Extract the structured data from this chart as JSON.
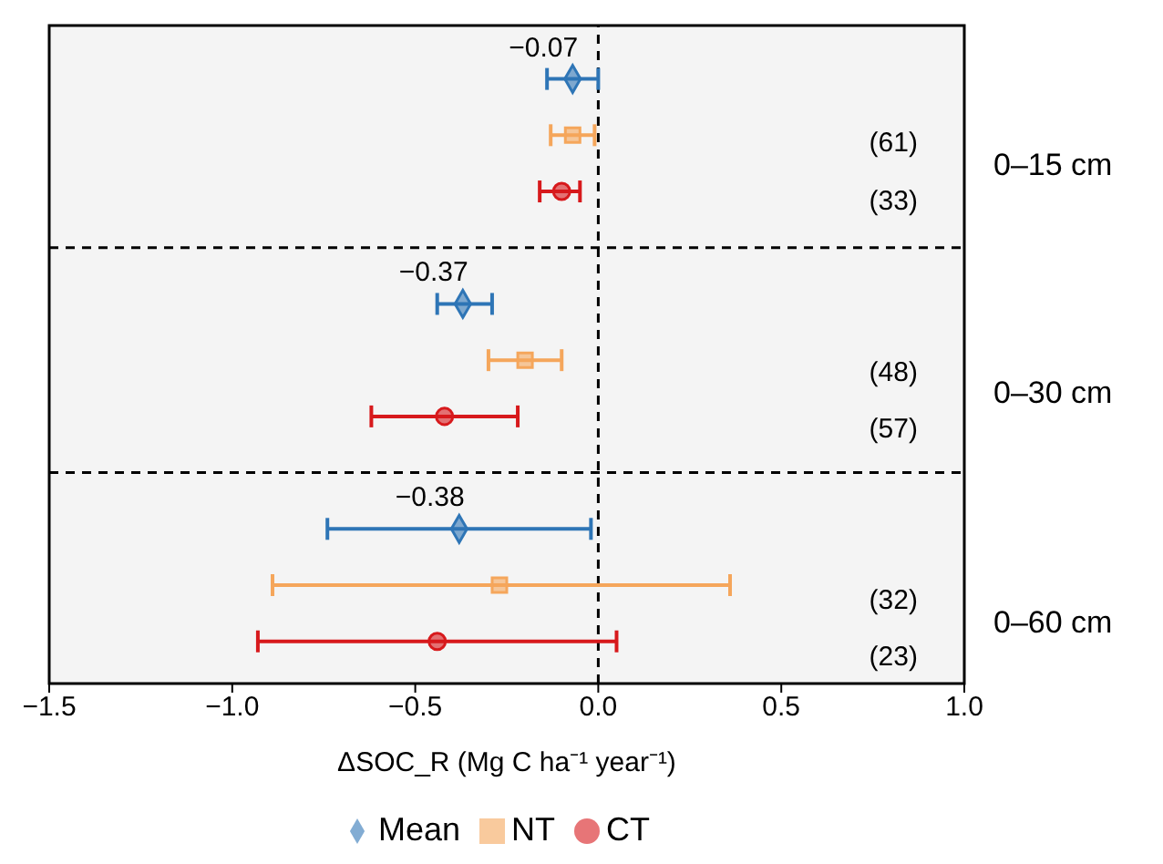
{
  "chart_data": {
    "type": "scatter",
    "orientation": "horizontal",
    "xlabel": "ΔSOC_R (Mg C ha⁻¹ year⁻¹)",
    "categories": [
      null,
      null,
      null,
      null,
      null,
      null,
      null,
      null,
      null
    ],
    "series": [
      {
        "name": "Mean",
        "color": "#2e75b6",
        "marker": "diamond",
        "values": [
          -0.07,
          null,
          null,
          -0.37,
          null,
          null,
          -0.38,
          null,
          null
        ],
        "errors": [
          [
            -0.14,
            0.0
          ],
          null,
          null,
          [
            -0.44,
            -0.29
          ],
          null,
          null,
          [
            -0.74,
            -0.02
          ],
          null,
          null
        ],
        "value_labels": [
          "−0.07",
          null,
          null,
          "−0.37",
          null,
          null,
          "−0.38",
          null,
          null
        ]
      },
      {
        "name": "NT",
        "color": "#f5a65b",
        "marker": "square",
        "values": [
          null,
          -0.07,
          null,
          null,
          -0.2,
          null,
          null,
          -0.27,
          null
        ],
        "errors": [
          null,
          [
            -0.13,
            -0.01
          ],
          null,
          null,
          [
            -0.3,
            -0.1
          ],
          null,
          null,
          [
            -0.89,
            0.36
          ],
          null
        ]
      },
      {
        "name": "CT",
        "color": "#d7191c",
        "marker": "circle",
        "values": [
          null,
          null,
          -0.1,
          null,
          null,
          -0.42,
          null,
          null,
          -0.44
        ],
        "errors": [
          null,
          null,
          [
            -0.16,
            -0.05
          ],
          null,
          null,
          [
            -0.62,
            -0.22
          ],
          null,
          null,
          [
            -0.93,
            0.05
          ]
        ]
      }
    ],
    "xlim": [
      -1.5,
      1.0
    ],
    "xticks": [
      {
        "value": -1.5,
        "label": "−1.5"
      },
      {
        "value": -1.0,
        "label": "−1.0"
      },
      {
        "value": -0.5,
        "label": "−0.5"
      },
      {
        "value": 0.0,
        "label": "0.0"
      },
      {
        "value": 0.5,
        "label": "0.5"
      },
      {
        "value": 1.0,
        "label": "1.0"
      }
    ],
    "ref_lines": [
      {
        "axis": "x",
        "value": 0,
        "line_style": "dashed",
        "color": "#000000"
      }
    ],
    "annotations": [
      "0–15 cm",
      "0–30 cm",
      "0–60 cm",
      "(61)",
      "(33)",
      "(48)",
      "(57)",
      "(32)",
      "(23)"
    ],
    "legend": "bottom",
    "tick_labels": "x"
  }
}
